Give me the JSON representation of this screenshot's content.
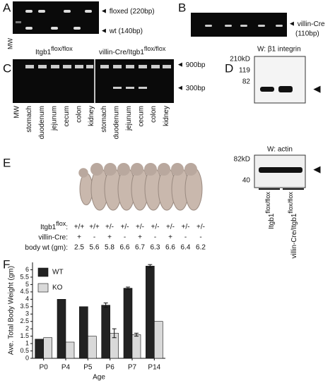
{
  "panels": {
    "A": {
      "label": "A",
      "bands": [
        "floxed (220bp)",
        "wt (140bp)"
      ],
      "ladder": "MW"
    },
    "B": {
      "label": "B",
      "band": [
        "villin-Cre",
        "(110bp)"
      ]
    },
    "C": {
      "label": "C",
      "groups": [
        {
          "name": "Itgb1",
          "sup": "flox/flox"
        },
        {
          "name": "villin-Cre/Itgb1",
          "sup": "flox/flox"
        }
      ],
      "sizes": [
        "900bp",
        "300bp"
      ],
      "lanes": [
        "MW",
        "stomach",
        "duodenum",
        "jejunum",
        "cecum",
        "colon",
        "kidney",
        "stomach",
        "duodenum",
        "jejunum",
        "cecum",
        "colon",
        "kidney"
      ]
    },
    "D": {
      "label": "D",
      "blots": [
        {
          "title": "W: β1 integrin",
          "markers": [
            "210kD",
            "119",
            "82"
          ]
        },
        {
          "title": "W: actin",
          "markers": [
            "82kD",
            "40"
          ]
        }
      ],
      "groups": [
        {
          "name": "Itgb1",
          "sup": "flox/flox"
        },
        {
          "name": "villin-Cre/Itgb1",
          "sup": "flox/flox"
        }
      ]
    },
    "E": {
      "label": "E",
      "rows": [
        {
          "label": "Itgb1",
          "sup": "flox",
          "tail": ":",
          "values": [
            "+/+",
            "+/+",
            "+/-",
            "+/-",
            "+/-",
            "+/-",
            "+/-",
            "+/-",
            "+/-"
          ]
        },
        {
          "label": "villin-Cre:",
          "values": [
            "+",
            "-",
            "+",
            "-",
            "+",
            "-",
            "+",
            "-",
            "-"
          ]
        },
        {
          "label": "body wt (gm):",
          "values": [
            "2.5",
            "5.6",
            "5.8",
            "6.6",
            "6.7",
            "6.3",
            "6.6",
            "6.4",
            "6.2"
          ]
        }
      ]
    },
    "F": {
      "label": "F"
    }
  },
  "chart_data": {
    "type": "bar",
    "xlabel": "Age",
    "ylabel": "Ave. Total Body Weight (gm)",
    "categories": [
      "P0",
      "P4",
      "P5",
      "P6",
      "P7",
      "P14"
    ],
    "series": [
      {
        "name": "WT",
        "color": "#222222",
        "values": [
          1.3,
          4.0,
          3.5,
          3.6,
          4.75,
          6.25
        ],
        "errors": [
          null,
          null,
          null,
          0.15,
          0.08,
          0.1
        ]
      },
      {
        "name": "KO",
        "color": "#d9d9d9",
        "values": [
          1.4,
          1.1,
          1.5,
          1.7,
          1.6,
          2.5
        ],
        "errors": [
          null,
          null,
          null,
          0.3,
          0.1,
          null
        ]
      }
    ],
    "ylim": [
      0,
      6.5
    ],
    "yticks": [
      0,
      0.5,
      1,
      1.5,
      2,
      2.5,
      3,
      3.5,
      4,
      4.5,
      5,
      5.5,
      6
    ],
    "legend": "top-left"
  }
}
